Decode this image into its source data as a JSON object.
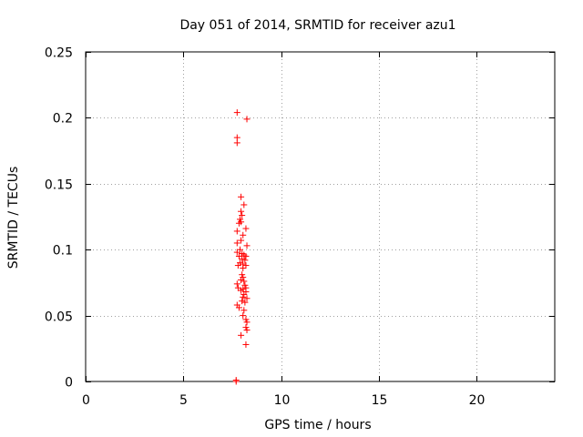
{
  "chart_data": {
    "type": "scatter",
    "title": "Day 051 of 2014, SRMTID for receiver azu1",
    "xlabel": "GPS time / hours",
    "ylabel": "SRMTID / TECUs",
    "xlim": [
      0,
      24
    ],
    "ylim": [
      0,
      0.25
    ],
    "xticks": [
      0,
      5,
      10,
      15,
      20
    ],
    "xtick_labels": [
      "0",
      "5",
      "10",
      "15",
      "20"
    ],
    "yticks": [
      0,
      0.05,
      0.1,
      0.15,
      0.2,
      0.25
    ],
    "ytick_labels": [
      "0",
      "0.05",
      "0.1",
      "0.15",
      "0.2",
      "0.25"
    ],
    "grid": true,
    "marker": "+",
    "color": "#ff0000",
    "series": [
      {
        "name": "SRMTID",
        "points": [
          [
            7.7,
            0.0
          ],
          [
            7.7,
            0.001
          ],
          [
            7.75,
            0.204
          ],
          [
            8.25,
            0.199
          ],
          [
            7.75,
            0.185
          ],
          [
            7.75,
            0.181
          ],
          [
            7.95,
            0.14
          ],
          [
            8.1,
            0.134
          ],
          [
            7.95,
            0.129
          ],
          [
            8.0,
            0.126
          ],
          [
            7.9,
            0.123
          ],
          [
            7.95,
            0.121
          ],
          [
            7.85,
            0.12
          ],
          [
            8.2,
            0.116
          ],
          [
            7.75,
            0.114
          ],
          [
            8.05,
            0.111
          ],
          [
            7.95,
            0.107
          ],
          [
            7.75,
            0.105
          ],
          [
            8.25,
            0.103
          ],
          [
            7.9,
            0.1
          ],
          [
            7.75,
            0.098
          ],
          [
            8.0,
            0.097
          ],
          [
            8.1,
            0.096
          ],
          [
            7.85,
            0.095
          ],
          [
            8.2,
            0.095
          ],
          [
            8.0,
            0.093
          ],
          [
            8.15,
            0.092
          ],
          [
            7.9,
            0.09
          ],
          [
            8.05,
            0.089
          ],
          [
            7.8,
            0.088
          ],
          [
            8.2,
            0.088
          ],
          [
            8.05,
            0.086
          ],
          [
            8.0,
            0.081
          ],
          [
            8.05,
            0.079
          ],
          [
            7.95,
            0.077
          ],
          [
            8.1,
            0.076
          ],
          [
            7.75,
            0.074
          ],
          [
            8.15,
            0.073
          ],
          [
            7.8,
            0.071
          ],
          [
            8.2,
            0.071
          ],
          [
            8.05,
            0.07
          ],
          [
            7.95,
            0.069
          ],
          [
            8.2,
            0.068
          ],
          [
            8.1,
            0.066
          ],
          [
            8.05,
            0.064
          ],
          [
            8.25,
            0.063
          ],
          [
            8.0,
            0.061
          ],
          [
            8.15,
            0.06
          ],
          [
            7.75,
            0.058
          ],
          [
            7.85,
            0.056
          ],
          [
            8.1,
            0.054
          ],
          [
            8.05,
            0.05
          ],
          [
            8.2,
            0.047
          ],
          [
            8.25,
            0.045
          ],
          [
            8.2,
            0.041
          ],
          [
            8.25,
            0.039
          ],
          [
            7.95,
            0.035
          ],
          [
            8.2,
            0.028
          ]
        ]
      }
    ]
  }
}
